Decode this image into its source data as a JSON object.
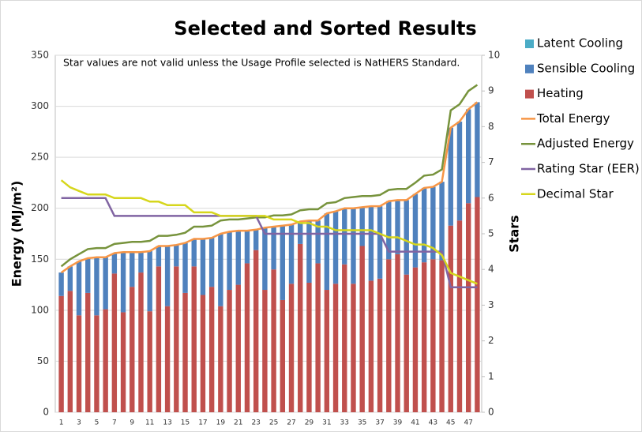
{
  "chart_data": {
    "type": "combo",
    "title": "Selected and Sorted Results",
    "annotation": "Star values are not valid unless the Usage Profile selected is NatHERS Standard.",
    "y_label": "Energy (MJ/m²)",
    "y2_label": "Stars",
    "categories": [
      1,
      null,
      3,
      null,
      5,
      null,
      7,
      null,
      9,
      null,
      11,
      null,
      13,
      null,
      15,
      null,
      17,
      null,
      19,
      null,
      21,
      null,
      23,
      null,
      25,
      null,
      27,
      null,
      29,
      null,
      31,
      null,
      33,
      null,
      35,
      null,
      37,
      null,
      39,
      null,
      41,
      null,
      43,
      null,
      45,
      null,
      47,
      null
    ],
    "ylim": [
      0,
      350
    ],
    "yticks": [
      0,
      50,
      100,
      150,
      200,
      250,
      300,
      350
    ],
    "y2lim": [
      0,
      10
    ],
    "y2ticks": [
      0,
      1,
      2,
      3,
      4,
      5,
      6,
      7,
      8,
      9,
      10
    ],
    "series": [
      {
        "name": "Latent Cooling",
        "type": "bar",
        "color": "#4bacc6",
        "values": [
          0,
          0,
          0,
          0,
          0,
          0,
          0,
          0,
          0,
          0,
          0,
          0,
          0,
          0,
          0,
          0,
          0,
          0,
          0,
          0,
          0,
          0,
          0,
          0,
          0,
          0,
          0,
          0,
          0,
          0,
          0,
          0,
          0,
          0,
          0,
          0,
          0,
          0,
          0,
          0,
          0,
          0,
          0,
          0,
          0,
          0,
          0,
          0
        ]
      },
      {
        "name": "Sensible Cooling",
        "type": "bar",
        "color": "#4f81bd",
        "values": [
          23,
          24,
          53,
          34,
          57,
          51,
          20,
          59,
          34,
          20,
          59,
          20,
          59,
          21,
          49,
          27,
          55,
          48,
          71,
          57,
          53,
          32,
          20,
          61,
          42,
          73,
          58,
          22,
          61,
          42,
          75,
          71,
          55,
          74,
          38,
          73,
          71,
          57,
          53,
          73,
          72,
          73,
          71,
          77,
          96,
          97,
          92,
          93
        ]
      },
      {
        "name": "Heating",
        "type": "bar",
        "color": "#c0504d",
        "values": [
          114,
          119,
          95,
          117,
          95,
          101,
          136,
          98,
          123,
          137,
          99,
          143,
          104,
          143,
          117,
          143,
          115,
          123,
          104,
          120,
          125,
          146,
          159,
          120,
          140,
          110,
          126,
          165,
          127,
          146,
          120,
          126,
          145,
          126,
          163,
          129,
          131,
          150,
          155,
          135,
          142,
          147,
          150,
          149,
          183,
          188,
          205,
          211
        ]
      },
      {
        "name": "Total Energy",
        "type": "line",
        "color": "#f79646",
        "values": [
          137,
          143,
          148,
          151,
          152,
          152,
          156,
          157,
          157,
          157,
          158,
          163,
          163,
          164,
          166,
          170,
          170,
          171,
          175,
          177,
          178,
          178,
          179,
          181,
          182,
          183,
          184,
          187,
          188,
          188,
          195,
          197,
          200,
          200,
          201,
          202,
          202,
          207,
          208,
          208,
          214,
          220,
          221,
          226,
          279,
          285,
          297,
          304
        ]
      },
      {
        "name": "Adjusted Energy",
        "type": "line",
        "color": "#77933c",
        "values": [
          143,
          150,
          155,
          160,
          161,
          161,
          165,
          166,
          167,
          167,
          168,
          173,
          173,
          174,
          176,
          182,
          182,
          183,
          188,
          189,
          189,
          190,
          191,
          191,
          193,
          193,
          194,
          198,
          199,
          199,
          205,
          206,
          210,
          211,
          212,
          212,
          213,
          218,
          219,
          219,
          225,
          232,
          233,
          238,
          296,
          302,
          315,
          321
        ]
      },
      {
        "name": "Rating Star (EER)",
        "type": "line",
        "axis": "y2",
        "color": "#8064a2",
        "values": [
          6,
          6,
          6,
          6,
          6,
          6,
          5.5,
          5.5,
          5.5,
          5.5,
          5.5,
          5.5,
          5.5,
          5.5,
          5.5,
          5.5,
          5.5,
          5.5,
          5.5,
          5.5,
          5.5,
          5.5,
          5.5,
          5,
          5,
          5,
          5,
          5,
          5,
          5,
          5,
          5,
          5,
          5,
          5,
          5,
          5,
          4.5,
          4.5,
          4.5,
          4.5,
          4.5,
          4.5,
          4.5,
          3.5,
          3.5,
          3.5,
          3.5
        ]
      },
      {
        "name": "Decimal Star",
        "type": "line",
        "axis": "y2",
        "color": "#d6d61c",
        "values": [
          6.5,
          6.3,
          6.2,
          6.1,
          6.1,
          6.1,
          6,
          6,
          6,
          6,
          5.9,
          5.9,
          5.8,
          5.8,
          5.8,
          5.6,
          5.6,
          5.6,
          5.5,
          5.5,
          5.5,
          5.5,
          5.5,
          5.5,
          5.4,
          5.4,
          5.4,
          5.3,
          5.3,
          5.2,
          5.2,
          5.1,
          5.1,
          5.1,
          5.1,
          5.1,
          5,
          4.9,
          4.9,
          4.8,
          4.7,
          4.7,
          4.6,
          4.4,
          3.9,
          3.8,
          3.7,
          3.6
        ]
      }
    ]
  }
}
